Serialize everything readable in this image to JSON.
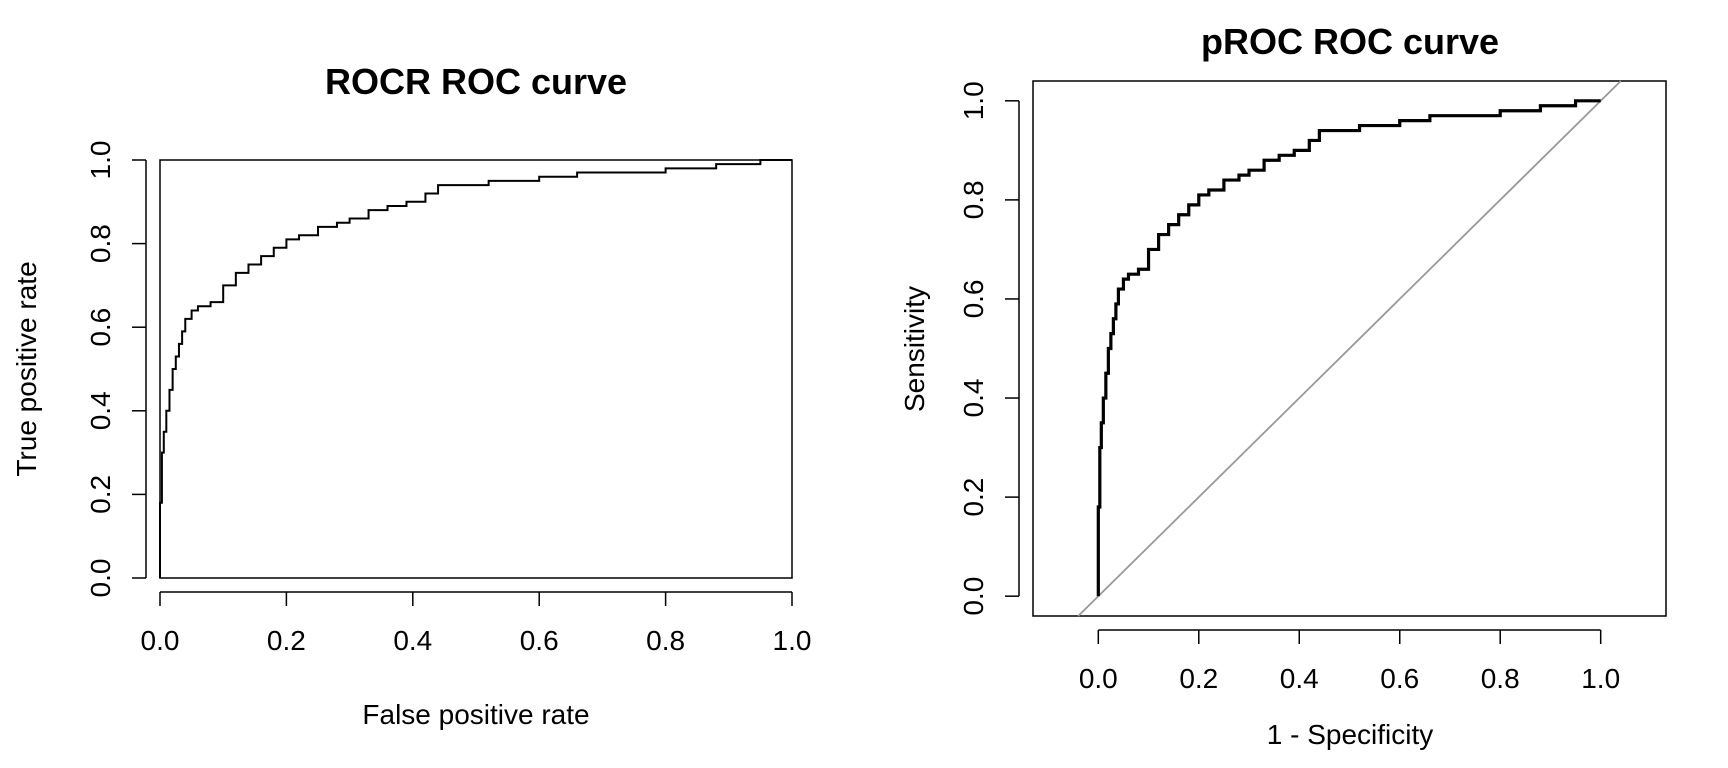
{
  "chart_data": [
    {
      "type": "line",
      "title": "ROCR ROC curve",
      "xlabel": "False positive rate",
      "ylabel": "True positive rate",
      "xlim": [
        0,
        1
      ],
      "ylim": [
        0,
        1
      ],
      "x_ticks": [
        "0.0",
        "0.2",
        "0.4",
        "0.6",
        "0.8",
        "1.0"
      ],
      "y_ticks": [
        "0.0",
        "0.2",
        "0.4",
        "0.6",
        "0.8",
        "1.0"
      ],
      "grid": false,
      "legend": "none",
      "line_color": "#000000",
      "series": [
        {
          "x": [
            0.0,
            0.0,
            0.003,
            0.006,
            0.01,
            0.015,
            0.02,
            0.025,
            0.03,
            0.035,
            0.04,
            0.05,
            0.06,
            0.08,
            0.1,
            0.12,
            0.14,
            0.16,
            0.18,
            0.2,
            0.22,
            0.25,
            0.28,
            0.3,
            0.33,
            0.36,
            0.39,
            0.42,
            0.44,
            0.48,
            0.52,
            0.56,
            0.6,
            0.66,
            0.72,
            0.8,
            0.88,
            0.95,
            1.0
          ],
          "y": [
            0.0,
            0.18,
            0.3,
            0.35,
            0.4,
            0.45,
            0.5,
            0.53,
            0.56,
            0.59,
            0.62,
            0.64,
            0.65,
            0.66,
            0.7,
            0.73,
            0.75,
            0.77,
            0.79,
            0.81,
            0.82,
            0.84,
            0.85,
            0.86,
            0.88,
            0.89,
            0.9,
            0.92,
            0.94,
            0.94,
            0.95,
            0.95,
            0.96,
            0.97,
            0.97,
            0.98,
            0.99,
            1.0,
            1.0
          ]
        }
      ]
    },
    {
      "type": "line",
      "title": "pROC ROC curve",
      "xlabel": "1 - Specificity",
      "ylabel": "Sensitivity",
      "xlim": [
        -0.13,
        1.13
      ],
      "ylim": [
        -0.04,
        1.04
      ],
      "x_ticks": [
        "0.0",
        "0.2",
        "0.4",
        "0.6",
        "0.8",
        "1.0"
      ],
      "y_ticks": [
        "0.0",
        "0.2",
        "0.4",
        "0.6",
        "0.8",
        "1.0"
      ],
      "grid": false,
      "legend": "none",
      "line_color": "#000000",
      "reference_line": {
        "from": [
          0,
          0
        ],
        "to": [
          1,
          1
        ],
        "color": "#999999"
      },
      "series": [
        {
          "x": [
            0.0,
            0.0,
            0.003,
            0.006,
            0.01,
            0.015,
            0.02,
            0.025,
            0.03,
            0.035,
            0.04,
            0.05,
            0.06,
            0.08,
            0.1,
            0.12,
            0.14,
            0.16,
            0.18,
            0.2,
            0.22,
            0.25,
            0.28,
            0.3,
            0.33,
            0.36,
            0.39,
            0.42,
            0.44,
            0.48,
            0.52,
            0.56,
            0.6,
            0.66,
            0.72,
            0.8,
            0.88,
            0.95,
            1.0
          ],
          "y": [
            0.0,
            0.18,
            0.3,
            0.35,
            0.4,
            0.45,
            0.5,
            0.53,
            0.56,
            0.59,
            0.62,
            0.64,
            0.65,
            0.66,
            0.7,
            0.73,
            0.75,
            0.77,
            0.79,
            0.81,
            0.82,
            0.84,
            0.85,
            0.86,
            0.88,
            0.89,
            0.9,
            0.92,
            0.94,
            0.94,
            0.95,
            0.95,
            0.96,
            0.97,
            0.97,
            0.98,
            0.99,
            1.0,
            1.0
          ]
        }
      ]
    }
  ]
}
